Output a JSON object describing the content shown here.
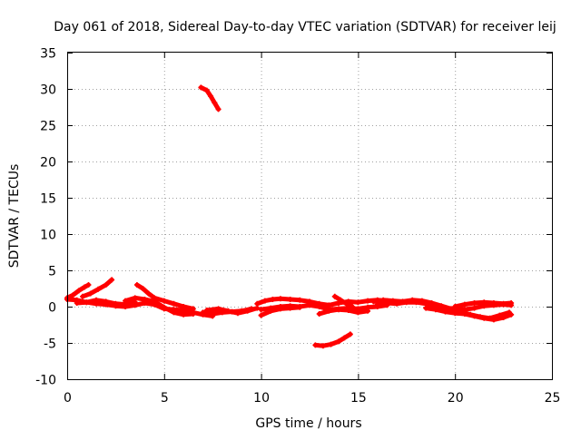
{
  "chart_data": {
    "type": "scatter",
    "title": "Day 061 of 2018, Sidereal Day-to-day VTEC variation (SDTVAR) for receiver leij",
    "xlabel": "GPS time / hours",
    "ylabel": "SDTVAR / TECUs",
    "xlim": [
      0,
      25
    ],
    "ylim": [
      -10,
      35
    ],
    "x_ticks": [
      "0",
      "5",
      "10",
      "15",
      "20",
      "25"
    ],
    "y_ticks": [
      "-10",
      "-5",
      "0",
      "5",
      "10",
      "15",
      "20",
      "25",
      "30",
      "35"
    ],
    "grid": true,
    "legend": "none",
    "color": "#ff0000",
    "series": [
      {
        "values": [
          [
            0.0,
            1.2
          ],
          [
            0.3,
            1.6
          ],
          [
            0.6,
            2.2
          ],
          [
            0.9,
            2.7
          ],
          [
            1.1,
            3.0
          ]
        ]
      },
      {
        "values": [
          [
            0.0,
            1.0
          ],
          [
            0.5,
            0.9
          ],
          [
            1.0,
            0.6
          ],
          [
            1.5,
            0.4
          ],
          [
            2.0,
            0.3
          ],
          [
            2.5,
            0.1
          ],
          [
            3.0,
            0.0
          ],
          [
            3.5,
            0.2
          ],
          [
            4.0,
            0.5
          ],
          [
            4.5,
            0.3
          ],
          [
            5.0,
            -0.3
          ],
          [
            5.5,
            -0.4
          ],
          [
            6.0,
            -0.5
          ],
          [
            6.5,
            -0.8
          ],
          [
            7.0,
            -1.1
          ],
          [
            7.5,
            -1.3
          ]
        ]
      },
      {
        "values": [
          [
            0.8,
            1.4
          ],
          [
            1.2,
            1.8
          ],
          [
            1.6,
            2.4
          ],
          [
            2.0,
            3.0
          ],
          [
            2.3,
            3.7
          ]
        ]
      },
      {
        "values": [
          [
            0.5,
            0.5
          ],
          [
            1.0,
            0.6
          ],
          [
            1.5,
            0.9
          ],
          [
            2.0,
            0.7
          ],
          [
            2.5,
            0.4
          ],
          [
            3.0,
            0.3
          ],
          [
            3.5,
            0.6
          ]
        ]
      },
      {
        "values": [
          [
            3.6,
            3.0
          ],
          [
            3.9,
            2.5
          ],
          [
            4.2,
            1.8
          ],
          [
            4.5,
            1.2
          ],
          [
            5.0,
            0.8
          ],
          [
            5.5,
            0.4
          ],
          [
            6.0,
            0.0
          ],
          [
            6.5,
            -0.3
          ]
        ]
      },
      {
        "values": [
          [
            3.0,
            0.8
          ],
          [
            3.5,
            1.2
          ],
          [
            4.0,
            1.0
          ],
          [
            4.5,
            0.7
          ],
          [
            5.0,
            -0.1
          ],
          [
            5.5,
            -0.8
          ],
          [
            6.0,
            -1.1
          ],
          [
            6.5,
            -1.0
          ]
        ]
      },
      {
        "values": [
          [
            7.0,
            -0.8
          ],
          [
            7.5,
            -1.0
          ],
          [
            8.0,
            -0.8
          ],
          [
            8.5,
            -0.7
          ],
          [
            9.0,
            -0.6
          ],
          [
            9.5,
            -0.3
          ]
        ]
      },
      {
        "values": [
          [
            7.2,
            -0.5
          ],
          [
            7.8,
            -0.3
          ],
          [
            8.3,
            -0.6
          ],
          [
            8.8,
            -0.9
          ],
          [
            9.3,
            -0.6
          ],
          [
            9.8,
            -0.2
          ]
        ]
      },
      {
        "values": [
          [
            6.9,
            30.2
          ],
          [
            7.2,
            29.8
          ],
          [
            7.4,
            29.0
          ],
          [
            7.6,
            28.1
          ],
          [
            7.8,
            27.2
          ]
        ]
      },
      {
        "values": [
          [
            10.0,
            -0.4
          ],
          [
            10.5,
            -0.2
          ],
          [
            11.0,
            0.0
          ],
          [
            11.5,
            0.1
          ],
          [
            12.0,
            0.0
          ],
          [
            12.5,
            0.2
          ],
          [
            13.0,
            0.0
          ],
          [
            13.5,
            -0.4
          ],
          [
            14.0,
            -0.3
          ],
          [
            14.5,
            -0.2
          ],
          [
            15.0,
            -0.3
          ],
          [
            15.5,
            -0.1
          ],
          [
            16.0,
            0.0
          ],
          [
            16.5,
            0.2
          ]
        ]
      },
      {
        "values": [
          [
            9.8,
            0.4
          ],
          [
            10.2,
            0.8
          ],
          [
            10.6,
            1.0
          ],
          [
            11.0,
            1.1
          ],
          [
            11.5,
            1.0
          ],
          [
            12.0,
            0.9
          ],
          [
            12.5,
            0.7
          ],
          [
            13.0,
            0.4
          ],
          [
            13.5,
            0.2
          ],
          [
            14.0,
            0.5
          ],
          [
            14.5,
            0.7
          ],
          [
            15.0,
            0.6
          ],
          [
            15.5,
            0.8
          ],
          [
            16.0,
            0.9
          ],
          [
            16.5,
            0.8
          ]
        ]
      },
      {
        "values": [
          [
            10.0,
            -1.2
          ],
          [
            10.5,
            -0.6
          ],
          [
            11.0,
            -0.3
          ],
          [
            11.5,
            -0.2
          ],
          [
            12.0,
            -0.1
          ]
        ]
      },
      {
        "values": [
          [
            13.0,
            -1.0
          ],
          [
            13.5,
            -0.6
          ],
          [
            14.0,
            -0.4
          ],
          [
            14.5,
            -0.5
          ],
          [
            15.0,
            -0.8
          ],
          [
            15.5,
            -0.6
          ]
        ]
      },
      {
        "values": [
          [
            13.8,
            1.4
          ],
          [
            14.1,
            0.9
          ],
          [
            14.4,
            0.4
          ],
          [
            14.7,
            0.0
          ]
        ]
      },
      {
        "values": [
          [
            12.8,
            -5.3
          ],
          [
            13.2,
            -5.4
          ],
          [
            13.6,
            -5.2
          ],
          [
            14.0,
            -4.8
          ],
          [
            14.3,
            -4.3
          ],
          [
            14.6,
            -3.8
          ]
        ]
      },
      {
        "values": [
          [
            15.8,
            0.7
          ],
          [
            16.3,
            0.9
          ],
          [
            16.8,
            0.8
          ],
          [
            17.3,
            0.7
          ],
          [
            17.8,
            0.9
          ],
          [
            18.3,
            0.8
          ],
          [
            18.8,
            0.5
          ],
          [
            19.3,
            0.1
          ],
          [
            19.8,
            -0.3
          ],
          [
            20.3,
            -0.7
          ],
          [
            20.8,
            -1.1
          ],
          [
            21.3,
            -1.4
          ],
          [
            21.8,
            -1.6
          ],
          [
            22.3,
            -1.2
          ],
          [
            22.8,
            -0.8
          ]
        ]
      },
      {
        "values": [
          [
            16.0,
            0.3
          ],
          [
            16.5,
            0.5
          ],
          [
            17.0,
            0.4
          ],
          [
            17.5,
            0.6
          ],
          [
            18.0,
            0.6
          ],
          [
            18.5,
            0.4
          ],
          [
            19.0,
            0.1
          ],
          [
            19.5,
            -0.2
          ],
          [
            20.0,
            -0.3
          ],
          [
            20.5,
            -0.4
          ],
          [
            21.0,
            -0.2
          ],
          [
            21.5,
            0.1
          ],
          [
            22.0,
            0.2
          ],
          [
            22.5,
            0.3
          ],
          [
            22.9,
            0.2
          ]
        ]
      },
      {
        "values": [
          [
            18.5,
            -0.2
          ],
          [
            19.0,
            -0.4
          ],
          [
            19.5,
            -0.7
          ],
          [
            20.0,
            -0.9
          ],
          [
            20.5,
            -1.0
          ],
          [
            21.0,
            -1.3
          ],
          [
            21.5,
            -1.6
          ],
          [
            22.0,
            -1.8
          ],
          [
            22.5,
            -1.5
          ],
          [
            22.9,
            -1.1
          ]
        ]
      },
      {
        "values": [
          [
            20.0,
            0.0
          ],
          [
            20.5,
            0.3
          ],
          [
            21.0,
            0.5
          ],
          [
            21.5,
            0.6
          ],
          [
            22.0,
            0.5
          ],
          [
            22.5,
            0.4
          ],
          [
            22.9,
            0.5
          ]
        ]
      }
    ]
  }
}
